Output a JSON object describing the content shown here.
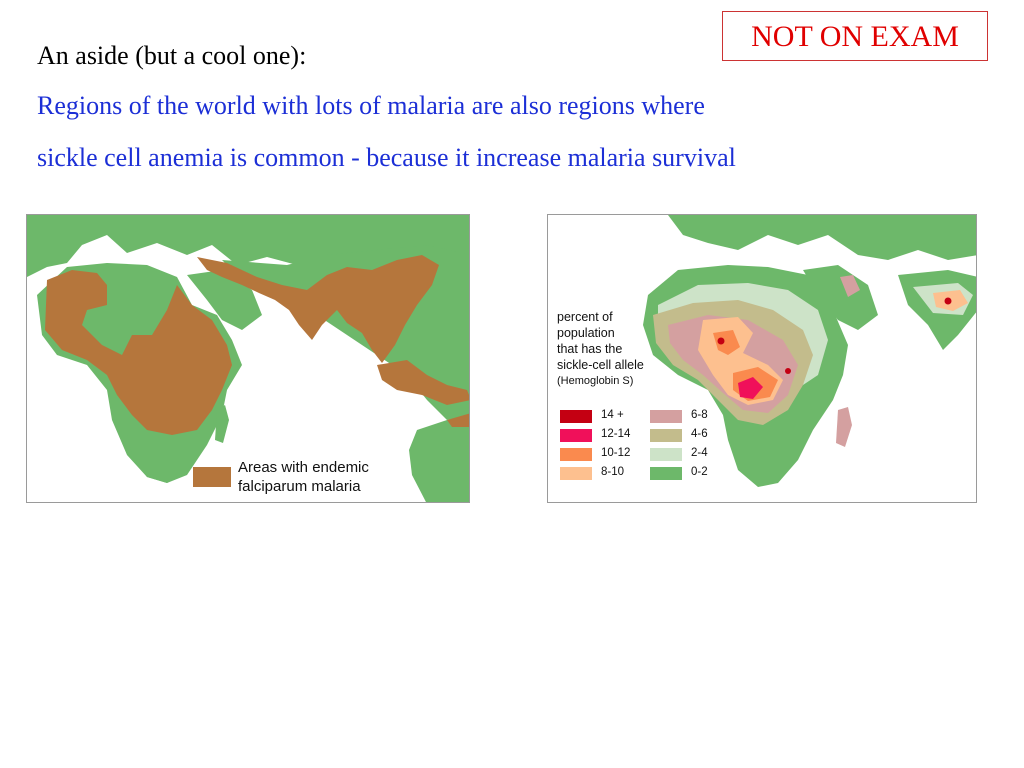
{
  "badge": "NOT ON EXAM",
  "intro": "An aside (but a cool one):",
  "lines": [
    "Regions of the world with lots of malaria are also regions where",
    "sickle cell anemia is common - because it increase malaria survival"
  ],
  "colors": {
    "ocean": "#ffffff",
    "land": "#6db86a",
    "malaria": "#b5763c",
    "c14plus": "#c40012",
    "c12_14": "#f0105a",
    "c10_12": "#fa8a4e",
    "c8_10": "#fdc08f",
    "c6_8": "#d4a0a0",
    "c4_6": "#c3bc8c",
    "c2_4": "#cde3c8",
    "c0_2": "#6db86a"
  },
  "map_left": {
    "legend_line1": "Areas with endemic",
    "legend_line2": "falciparum malaria"
  },
  "map_right": {
    "caption": [
      "percent of",
      "population",
      "that has the",
      "sickle-cell allele"
    ],
    "caption_sub": "(Hemoglobin S)",
    "legend": [
      {
        "label": "14 +",
        "color": "#c40012"
      },
      {
        "label": "12-14",
        "color": "#f0105a"
      },
      {
        "label": "10-12",
        "color": "#fa8a4e"
      },
      {
        "label": "8-10",
        "color": "#fdc08f"
      },
      {
        "label": "6-8",
        "color": "#d4a0a0"
      },
      {
        "label": "4-6",
        "color": "#c3bc8c"
      },
      {
        "label": "2-4",
        "color": "#cde3c8"
      },
      {
        "label": "0-2",
        "color": "#6db86a"
      }
    ]
  }
}
